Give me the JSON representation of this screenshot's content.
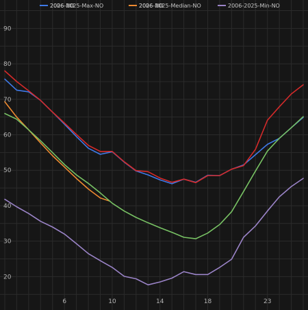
{
  "chart_data": {
    "type": "line",
    "title": "",
    "xlabel": "",
    "ylabel": "",
    "xlim": [
      0.6,
      26.4
    ],
    "ylim": [
      10.6,
      98
    ],
    "grid": true,
    "legend_position": "top",
    "x_ticks": [
      6,
      10,
      14,
      18,
      23
    ],
    "y_ticks": [
      20,
      30,
      40,
      50,
      60,
      70,
      80,
      90
    ],
    "legend": [
      {
        "label": "2006-2025-Max-NO",
        "overlay_label": "2026-NO",
        "color": "#3f7ae8"
      },
      {
        "label": "2006-2025-Median-NO",
        "overlay_label": "2026-NO",
        "color": "#ee8a30"
      },
      {
        "label": "2006-2025-Min-NO",
        "color": "#9b84c8"
      }
    ],
    "series": [
      {
        "name": "2006-2025-Max-NO",
        "color": "#3f7ae8",
        "x": [
          1,
          2,
          3,
          4,
          5,
          6,
          7,
          8,
          9,
          10,
          11,
          12,
          13,
          14,
          15,
          16,
          17,
          18,
          19,
          20,
          21,
          22,
          23,
          24,
          25,
          26
        ],
        "y": [
          75.7,
          72.6,
          72.1,
          69.7,
          66.4,
          63,
          59.5,
          56.2,
          54.5,
          55.2,
          52.3,
          49.8,
          48.7,
          47.3,
          46.2,
          47.5,
          46.6,
          48.6,
          48.5,
          50.3,
          51.5,
          54.4,
          57.3,
          59,
          62,
          64.9
        ]
      },
      {
        "name": "2026-NO",
        "color": "#d42a2a",
        "x": [
          1,
          2,
          3,
          4,
          5,
          6,
          7,
          8,
          9,
          10,
          11,
          12,
          13,
          14,
          15,
          16,
          17,
          18,
          19,
          20,
          21,
          22,
          23,
          24,
          25,
          26
        ],
        "y": [
          78,
          75,
          72.4,
          69.7,
          66.4,
          63.3,
          60.1,
          57,
          55.3,
          55.3,
          52.4,
          49.9,
          49.6,
          47.8,
          46.6,
          47.5,
          46.5,
          48.5,
          48.5,
          50.3,
          51.3,
          55.9,
          64.1,
          67.9,
          71.5,
          74.1
        ]
      },
      {
        "name": "2006-2025-Median-NO",
        "color": "#ee8a30",
        "x": [
          1,
          2,
          3,
          4,
          5,
          6,
          7,
          8,
          9,
          9.8
        ],
        "y": [
          69.3,
          65,
          61.4,
          57.7,
          54.1,
          50.9,
          47.7,
          44.7,
          42.2,
          41.3
        ]
      },
      {
        "name": "",
        "color": "#78c264",
        "x": [
          1,
          2,
          3,
          4,
          5,
          6,
          7,
          8,
          9,
          10,
          11,
          12,
          13,
          14,
          15,
          16,
          17,
          18,
          19,
          20,
          21,
          22,
          23,
          24,
          25,
          26
        ],
        "y": [
          66,
          64.4,
          61.4,
          58.3,
          55,
          51.6,
          48.7,
          46.3,
          43.6,
          40.7,
          38.5,
          36.7,
          35.2,
          33.8,
          32.5,
          31.1,
          30.7,
          32.3,
          34.7,
          38.3,
          44,
          49.8,
          55.4,
          59,
          62,
          65.1
        ]
      },
      {
        "name": "2006-2025-Min-NO",
        "color": "#9b84c8",
        "x": [
          1,
          2,
          3,
          4,
          5,
          6,
          7,
          8,
          9,
          10,
          11,
          12,
          13,
          14,
          15,
          16,
          17,
          18,
          19,
          20,
          21,
          22,
          23,
          24,
          25,
          26
        ],
        "y": [
          41.8,
          39.7,
          37.8,
          35.6,
          34,
          32,
          29.3,
          26.5,
          24.5,
          22.6,
          20.1,
          19.4,
          17.7,
          18.5,
          19.6,
          21.4,
          20.6,
          20.6,
          22.6,
          24.9,
          31.1,
          34.3,
          38.5,
          42.5,
          45.4,
          47.7
        ]
      }
    ]
  }
}
